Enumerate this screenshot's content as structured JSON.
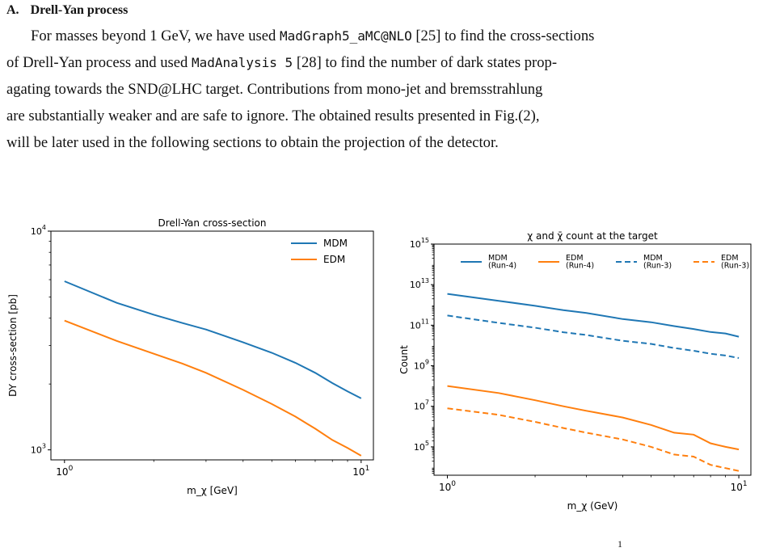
{
  "section": {
    "number": "A.",
    "title": "Drell-Yan process"
  },
  "paragraph": {
    "lines": [
      [
        {
          "t": "For masses beyond 1 GeV, we have used "
        },
        {
          "t": "MadGraph5_aMC@NLO",
          "mono": true
        },
        {
          "t": " [25] to find the cross-sections"
        }
      ],
      [
        {
          "t": "of Drell-Yan process and used "
        },
        {
          "t": "MadAnalysis 5",
          "mono": true
        },
        {
          "t": " [28] to find the number of dark states prop-"
        }
      ],
      [
        {
          "t": "agating towards the SND@LHC target.  Contributions from mono-jet and bremsstrahlung"
        }
      ],
      [
        {
          "t": "are substantially weaker and are safe to ignore. The obtained results presented in Fig.(2),"
        }
      ],
      [
        {
          "t": "will be later used in the following sections to obtain the projection of the detector."
        }
      ]
    ]
  },
  "page_number": "1",
  "chart_data": [
    {
      "type": "line",
      "title": "Drell-Yan cross-section",
      "xlabel": "m_χ [GeV]",
      "ylabel": "DY cross-section [pb]",
      "xscale": "log",
      "yscale": "log",
      "xlim": [
        0.9,
        11
      ],
      "ylim": [
        900,
        10000
      ],
      "x_ticks": [
        {
          "v": 1,
          "label": "10",
          "exp": "0"
        },
        {
          "v": 10,
          "label": "10",
          "exp": "1"
        }
      ],
      "y_ticks": [
        {
          "v": 1000,
          "label": "10",
          "exp": "3"
        },
        {
          "v": 10000,
          "label": "10",
          "exp": "4"
        }
      ],
      "legend": "upper-right",
      "grid": false,
      "series": [
        {
          "name": "MDM",
          "color": "#1f77b4",
          "dash": "solid",
          "x": [
            1,
            1.5,
            2,
            2.5,
            3,
            4,
            5,
            6,
            7,
            8,
            9,
            10
          ],
          "y": [
            5900,
            4700,
            4150,
            3800,
            3550,
            3100,
            2780,
            2500,
            2250,
            2020,
            1850,
            1720
          ]
        },
        {
          "name": "EDM",
          "color": "#ff7f0e",
          "dash": "solid",
          "x": [
            1,
            1.5,
            2,
            2.5,
            3,
            4,
            5,
            6,
            7,
            8,
            9,
            10
          ],
          "y": [
            3900,
            3150,
            2750,
            2480,
            2250,
            1880,
            1620,
            1420,
            1250,
            1110,
            1020,
            940
          ]
        }
      ]
    },
    {
      "type": "line",
      "title": "χ and χ̄ count at the target",
      "xlabel": "m_χ (GeV)",
      "ylabel": "Count",
      "xscale": "log",
      "yscale": "log",
      "xlim": [
        0.9,
        11
      ],
      "ylim": [
        4000,
        1000000000000000.0
      ],
      "x_ticks": [
        {
          "v": 1,
          "label": "10",
          "exp": "0"
        },
        {
          "v": 10,
          "label": "10",
          "exp": "1"
        }
      ],
      "y_ticks": [
        {
          "v": 100000.0,
          "label": "10",
          "exp": "5"
        },
        {
          "v": 10000000.0,
          "label": "10",
          "exp": "7"
        },
        {
          "v": 1000000000.0,
          "label": "10",
          "exp": "9"
        },
        {
          "v": 100000000000.0,
          "label": "10",
          "exp": "11"
        },
        {
          "v": 10000000000000.0,
          "label": "10",
          "exp": "13"
        },
        {
          "v": 1000000000000000.0,
          "label": "10",
          "exp": "15"
        }
      ],
      "legend": "top, 4 columns",
      "grid": false,
      "series": [
        {
          "name": "MDM\n(Run-4)",
          "color": "#1f77b4",
          "dash": "solid",
          "x": [
            1,
            1.5,
            2,
            2.5,
            3,
            4,
            5,
            6,
            7,
            8,
            9,
            10
          ],
          "y": [
            3500000000000.0,
            1600000000000.0,
            900000000000.0,
            550000000000.0,
            400000000000.0,
            200000000000.0,
            140000000000.0,
            90000000000.0,
            65000000000.0,
            46000000000.0,
            39000000000.0,
            27000000000.0
          ]
        },
        {
          "name": "EDM\n(Run-4)",
          "color": "#ff7f0e",
          "dash": "solid",
          "x": [
            1,
            1.5,
            2,
            2.5,
            3,
            4,
            5,
            6,
            7,
            8,
            9,
            10
          ],
          "y": [
            100000000.0,
            45000000.0,
            20000000.0,
            10000000.0,
            6000000.0,
            2800000.0,
            1200000.0,
            500000.0,
            400000.0,
            150000.0,
            100000.0,
            75000.0
          ]
        },
        {
          "name": "MDM\n(Run-3)",
          "color": "#1f77b4",
          "dash": "dashed",
          "x": [
            1,
            1.5,
            2,
            2.5,
            3,
            4,
            5,
            6,
            7,
            8,
            9,
            10
          ],
          "y": [
            300000000000.0,
            130000000000.0,
            75000000000.0,
            45000000000.0,
            33000000000.0,
            17000000000.0,
            12000000000.0,
            7500000000.0,
            5500000000.0,
            3900000000.0,
            3200000000.0,
            2400000000.0
          ]
        },
        {
          "name": "EDM\n(Run-3)",
          "color": "#ff7f0e",
          "dash": "dashed",
          "x": [
            1,
            1.5,
            2,
            2.5,
            3,
            4,
            5,
            6,
            7,
            8,
            9,
            10
          ],
          "y": [
            8000000.0,
            3800000.0,
            1700000.0,
            850000.0,
            500000.0,
            230000.0,
            100000.0,
            42000.0,
            33000.0,
            13000.0,
            9000.0,
            6500.0
          ]
        }
      ]
    }
  ]
}
